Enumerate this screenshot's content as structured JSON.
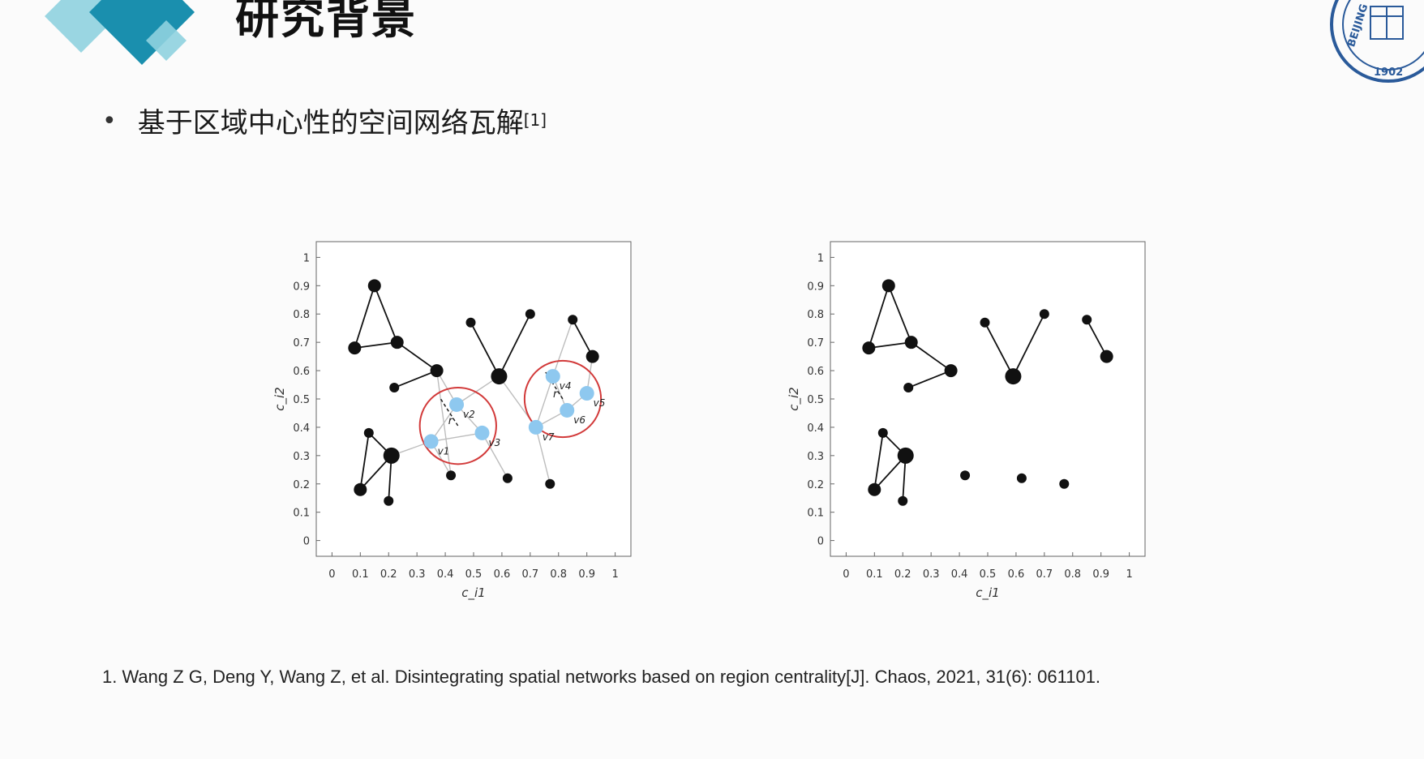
{
  "header": {
    "title": "研究背景",
    "logo_text_top": "BEIJING",
    "logo_year": "1902"
  },
  "bullet": {
    "text": "基于区域中心性的空间网络瓦解",
    "citation": "[1]"
  },
  "reference": {
    "text": "1.  Wang Z G, Deng Y, Wang Z, et al. Disintegrating spatial networks based on region centrality[J]. Chaos, 2021, 31(6): 061101."
  },
  "colors": {
    "deco_light": "#8fd1df",
    "deco_dark": "#1a8fae",
    "highlight_node": "#8ec8ef",
    "circle": "#d23a3a",
    "edge": "#111111",
    "faint_edge": "#bdbdbd"
  },
  "chart_data": [
    {
      "type": "scatter",
      "xlabel": "c_i1",
      "ylabel": "c_i2",
      "xlim": [
        0,
        1
      ],
      "ylim": [
        0,
        1
      ],
      "x_ticks": [
        "0",
        "0.1",
        "0.2",
        "0.3",
        "0.4",
        "0.5",
        "0.6",
        "0.7",
        "0.8",
        "0.9",
        "1"
      ],
      "y_ticks": [
        "0",
        "0.1",
        "0.2",
        "0.3",
        "0.4",
        "0.5",
        "0.6",
        "0.7",
        "0.8",
        "0.9",
        "1"
      ],
      "nodes": [
        {
          "x": 0.08,
          "y": 0.68,
          "size": "m"
        },
        {
          "x": 0.15,
          "y": 0.9,
          "size": "m"
        },
        {
          "x": 0.23,
          "y": 0.7,
          "size": "m"
        },
        {
          "x": 0.37,
          "y": 0.6,
          "size": "m"
        },
        {
          "x": 0.22,
          "y": 0.54,
          "size": "s"
        },
        {
          "x": 0.1,
          "y": 0.18,
          "size": "m"
        },
        {
          "x": 0.13,
          "y": 0.38,
          "size": "s"
        },
        {
          "x": 0.21,
          "y": 0.3,
          "size": "l"
        },
        {
          "x": 0.2,
          "y": 0.14,
          "size": "s"
        },
        {
          "x": 0.49,
          "y": 0.77,
          "size": "s"
        },
        {
          "x": 0.59,
          "y": 0.58,
          "size": "l"
        },
        {
          "x": 0.7,
          "y": 0.8,
          "size": "s"
        },
        {
          "x": 0.42,
          "y": 0.23,
          "size": "s"
        },
        {
          "x": 0.62,
          "y": 0.22,
          "size": "s"
        },
        {
          "x": 0.77,
          "y": 0.2,
          "size": "s"
        },
        {
          "x": 0.85,
          "y": 0.78,
          "size": "s"
        },
        {
          "x": 0.92,
          "y": 0.65,
          "size": "m"
        }
      ],
      "edges": [
        [
          0,
          1
        ],
        [
          1,
          2
        ],
        [
          0,
          2
        ],
        [
          2,
          3
        ],
        [
          4,
          3
        ],
        [
          5,
          6
        ],
        [
          6,
          7
        ],
        [
          5,
          7
        ],
        [
          7,
          8
        ],
        [
          9,
          10
        ],
        [
          10,
          11
        ],
        [
          15,
          16
        ]
      ],
      "highlight_nodes": [
        {
          "x": 0.35,
          "y": 0.35,
          "label": "v1"
        },
        {
          "x": 0.44,
          "y": 0.48,
          "label": "v2"
        },
        {
          "x": 0.53,
          "y": 0.38,
          "label": "v3"
        },
        {
          "x": 0.78,
          "y": 0.58,
          "label": "v4"
        },
        {
          "x": 0.9,
          "y": 0.52,
          "label": "v5"
        },
        {
          "x": 0.83,
          "y": 0.46,
          "label": "v6"
        },
        {
          "x": 0.72,
          "y": 0.4,
          "label": "v7"
        }
      ],
      "highlight_edges": [
        [
          0,
          1
        ],
        [
          1,
          2
        ],
        [
          0,
          2
        ],
        [
          3,
          5
        ],
        [
          4,
          5
        ],
        [
          5,
          6
        ],
        [
          3,
          6
        ]
      ],
      "faint_edges": [
        {
          "from": [
            0.37,
            0.6
          ],
          "to": [
            0.44,
            0.48
          ]
        },
        {
          "from": [
            0.21,
            0.3
          ],
          "to": [
            0.35,
            0.35
          ]
        },
        {
          "from": [
            0.42,
            0.23
          ],
          "to": [
            0.35,
            0.35
          ]
        },
        {
          "from": [
            0.59,
            0.58
          ],
          "to": [
            0.44,
            0.48
          ]
        },
        {
          "from": [
            0.62,
            0.22
          ],
          "to": [
            0.53,
            0.38
          ]
        },
        {
          "from": [
            0.59,
            0.58
          ],
          "to": [
            0.72,
            0.4
          ]
        },
        {
          "from": [
            0.77,
            0.2
          ],
          "to": [
            0.72,
            0.4
          ]
        },
        {
          "from": [
            0.85,
            0.78
          ],
          "to": [
            0.78,
            0.58
          ]
        },
        {
          "from": [
            0.92,
            0.65
          ],
          "to": [
            0.9,
            0.52
          ]
        },
        {
          "from": [
            0.42,
            0.23
          ],
          "to": [
            0.37,
            0.6
          ]
        }
      ],
      "circles": [
        {
          "cx": 0.445,
          "cy": 0.405,
          "r": 0.135,
          "label": "r"
        },
        {
          "cx": 0.815,
          "cy": 0.5,
          "r": 0.135,
          "label": "r"
        }
      ]
    },
    {
      "type": "scatter",
      "xlabel": "c_i1",
      "ylabel": "c_i2",
      "xlim": [
        0,
        1
      ],
      "ylim": [
        0,
        1
      ],
      "x_ticks": [
        "0",
        "0.1",
        "0.2",
        "0.3",
        "0.4",
        "0.5",
        "0.6",
        "0.7",
        "0.8",
        "0.9",
        "1"
      ],
      "y_ticks": [
        "0",
        "0.1",
        "0.2",
        "0.3",
        "0.4",
        "0.5",
        "0.6",
        "0.7",
        "0.8",
        "0.9",
        "1"
      ],
      "nodes": [
        {
          "x": 0.08,
          "y": 0.68,
          "size": "m"
        },
        {
          "x": 0.15,
          "y": 0.9,
          "size": "m"
        },
        {
          "x": 0.23,
          "y": 0.7,
          "size": "m"
        },
        {
          "x": 0.37,
          "y": 0.6,
          "size": "m"
        },
        {
          "x": 0.22,
          "y": 0.54,
          "size": "s"
        },
        {
          "x": 0.1,
          "y": 0.18,
          "size": "m"
        },
        {
          "x": 0.13,
          "y": 0.38,
          "size": "s"
        },
        {
          "x": 0.21,
          "y": 0.3,
          "size": "l"
        },
        {
          "x": 0.2,
          "y": 0.14,
          "size": "s"
        },
        {
          "x": 0.49,
          "y": 0.77,
          "size": "s"
        },
        {
          "x": 0.59,
          "y": 0.58,
          "size": "l"
        },
        {
          "x": 0.7,
          "y": 0.8,
          "size": "s"
        },
        {
          "x": 0.42,
          "y": 0.23,
          "size": "s"
        },
        {
          "x": 0.62,
          "y": 0.22,
          "size": "s"
        },
        {
          "x": 0.77,
          "y": 0.2,
          "size": "s"
        },
        {
          "x": 0.85,
          "y": 0.78,
          "size": "s"
        },
        {
          "x": 0.92,
          "y": 0.65,
          "size": "m"
        }
      ],
      "edges": [
        [
          0,
          1
        ],
        [
          1,
          2
        ],
        [
          0,
          2
        ],
        [
          2,
          3
        ],
        [
          4,
          3
        ],
        [
          5,
          6
        ],
        [
          6,
          7
        ],
        [
          5,
          7
        ],
        [
          7,
          8
        ],
        [
          9,
          10
        ],
        [
          10,
          11
        ],
        [
          15,
          16
        ]
      ],
      "highlight_nodes": [],
      "highlight_edges": [],
      "faint_edges": [],
      "circles": []
    }
  ]
}
